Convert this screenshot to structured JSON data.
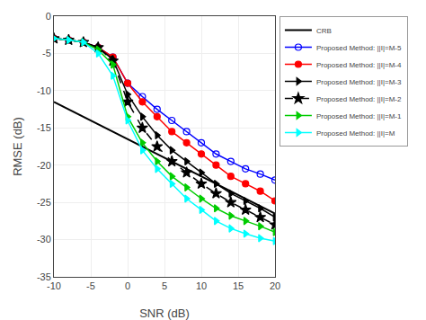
{
  "chart_data": {
    "type": "line",
    "x": [
      -10,
      -8,
      -6,
      -4,
      -2,
      0,
      2,
      4,
      6,
      8,
      10,
      12,
      14,
      16,
      18,
      20
    ],
    "series": [
      {
        "name": "CRB",
        "color": "black",
        "line_style": "solid",
        "values": [
          -11.5,
          -12.5,
          -13.5,
          -14.5,
          -15.5,
          -16.5,
          -17.5,
          -18.5,
          -19.5,
          -20.5,
          -21.5,
          -22.5,
          -23.5,
          -24.5,
          -25.5,
          -26.5
        ]
      },
      {
        "name": "Proposed Method: ||I|=M-5",
        "color": "blue",
        "line_style": "solid",
        "marker": "circle-open",
        "values": [
          -3.0,
          -3.2,
          -3.5,
          -4.2,
          -5.5,
          -9.0,
          -10.8,
          -12.5,
          -14.0,
          -15.5,
          -17.0,
          -18.5,
          -19.5,
          -20.5,
          -21.2,
          -22.0
        ]
      },
      {
        "name": "Proposed Method: ||I|=M-4",
        "color": "red",
        "line_style": "solid",
        "marker": "circle",
        "values": [
          -3.0,
          -3.2,
          -3.5,
          -4.2,
          -5.5,
          -9.0,
          -11.5,
          -13.5,
          -15.5,
          -17.0,
          -18.5,
          -20.0,
          -21.5,
          -22.5,
          -23.5,
          -24.8
        ]
      },
      {
        "name": "Proposed Method: ||I|=M-3",
        "color": "black",
        "line_style": "solid",
        "marker": "triangle-right",
        "values": [
          -3.0,
          -3.2,
          -3.5,
          -4.2,
          -5.8,
          -10.5,
          -13.5,
          -16.0,
          -18.0,
          -19.5,
          -21.0,
          -22.5,
          -23.8,
          -24.8,
          -25.8,
          -27.0
        ]
      },
      {
        "name": "Proposed Method: ||I|=M-2",
        "color": "black",
        "line_style": "dashed",
        "marker": "star",
        "values": [
          -3.0,
          -3.2,
          -3.5,
          -4.2,
          -6.0,
          -11.5,
          -15.0,
          -17.5,
          -19.5,
          -21.0,
          -22.5,
          -23.8,
          -25.0,
          -26.0,
          -27.0,
          -28.0
        ]
      },
      {
        "name": "Proposed Method: ||I|=M-1",
        "color": "#00cc00",
        "line_style": "solid",
        "marker": "triangle-right",
        "values": [
          -3.0,
          -3.2,
          -3.5,
          -4.5,
          -6.5,
          -13.5,
          -17.0,
          -19.5,
          -21.5,
          -23.0,
          -24.5,
          -25.8,
          -26.8,
          -27.5,
          -28.2,
          -29.0
        ]
      },
      {
        "name": "Proposed Method: ||I|=M",
        "color": "cyan",
        "line_style": "solid",
        "marker": "triangle-right",
        "values": [
          -3.0,
          -3.2,
          -3.5,
          -5.0,
          -8.0,
          -14.0,
          -18.0,
          -20.5,
          -22.5,
          -24.5,
          -26.0,
          -27.5,
          -28.5,
          -29.2,
          -29.8,
          -30.2
        ]
      }
    ],
    "xlabel": "SNR (dB)",
    "ylabel": "RMSE (dB)",
    "xlim": [
      -10,
      20
    ],
    "ylim": [
      -35,
      0
    ],
    "xticks": [
      -10,
      -5,
      0,
      5,
      10,
      15,
      20
    ],
    "yticks": [
      0,
      -5,
      -10,
      -15,
      -20,
      -25,
      -30,
      -35
    ],
    "grid": true,
    "legend": "upper right"
  }
}
